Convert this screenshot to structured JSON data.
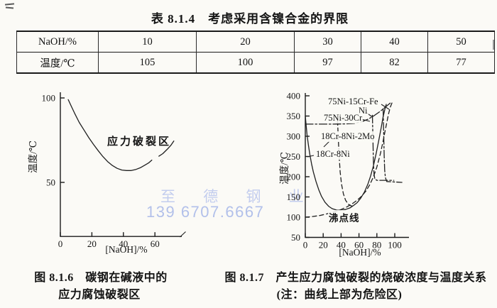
{
  "document": {
    "table_title": "表 8.1.4　考虑采用含镍合金的界限",
    "watermark_line1": "至 德 钢 业",
    "watermark_line2": "139 6707.6667"
  },
  "table": {
    "rows": [
      {
        "header": "NaOH/%",
        "values": [
          "10",
          "20",
          "30",
          "40",
          "50"
        ]
      },
      {
        "header": "温度/℃",
        "values": [
          "105",
          "100",
          "97",
          "82",
          "77"
        ]
      }
    ]
  },
  "fig6": {
    "zone_label": "应力破裂区",
    "ylabel": "温度/℃",
    "xlabel": "[NaOH]/%",
    "caption1": "图 8.1.6　碳钢在碱液中的",
    "caption2": "应力腐蚀破裂区"
  },
  "fig7": {
    "labels": {
      "ni15crfe": "75Ni-15Cr-Fe",
      "ni": "Ni",
      "ni30cr": "75Ni-30Cr",
      "cr8ni2mo": "18Cr-8Ni-2Mo",
      "cr8ni": "18Cr-8Ni",
      "boiling": "沸点线"
    },
    "ylabel": "温度/℃",
    "xlabel": "[NaOH]/%",
    "caption1": "图 8.1.7　产生应力腐蚀破裂的烧破浓度与温度关系",
    "caption2": "(注：曲线上部为危险区)"
  },
  "chart_data": [
    {
      "id": "fig6",
      "type": "line",
      "title": "碳钢在碱液中的应力腐蚀破裂区",
      "xlabel": "[NaOH]/%",
      "ylabel": "温度/℃",
      "xlim": [
        0,
        75
      ],
      "ylim": [
        18,
        105
      ],
      "xticks": [
        0,
        20,
        40,
        60
      ],
      "yticks": [
        50,
        100
      ],
      "grid": false,
      "annotations": [
        "应力破裂区"
      ],
      "series": [
        {
          "name": "应力破裂区边界",
          "style": "solid",
          "points": [
            [
              5,
              99
            ],
            [
              7,
              95
            ],
            [
              9,
              91
            ],
            [
              12,
              85.5
            ],
            [
              15,
              81
            ],
            [
              18,
              76.5
            ],
            [
              21,
              72.5
            ],
            [
              24,
              68.8
            ],
            [
              27,
              65.3
            ],
            [
              30,
              62.3
            ],
            [
              33,
              60
            ],
            [
              36,
              58.3
            ],
            [
              39,
              57.3
            ],
            [
              42,
              57
            ],
            [
              45,
              57
            ],
            [
              48,
              57.7
            ],
            [
              51,
              58.8
            ],
            [
              54,
              60.4
            ],
            [
              56,
              61.5
            ],
            [
              58,
              63.2
            ]
          ]
        },
        {
          "name": "边界延伸段",
          "style": "solid",
          "points": [
            [
              62.5,
              65.5
            ],
            [
              65,
              67
            ],
            [
              68,
              69.8
            ],
            [
              70,
              71.8
            ],
            [
              72,
              74.5
            ]
          ]
        }
      ]
    },
    {
      "id": "fig7",
      "type": "line",
      "title": "产生应力腐蚀破裂的烧破浓度与温度关系（曲线上部为危险区）",
      "xlabel": "[NaOH]/%",
      "ylabel": "温度/℃",
      "xlim": [
        0,
        112
      ],
      "ylim": [
        50,
        400
      ],
      "xticks": [
        0,
        20,
        40,
        60,
        80,
        100
      ],
      "yticks": [
        50,
        100,
        150,
        200,
        250,
        300,
        350,
        400
      ],
      "grid": false,
      "series": [
        {
          "name": "18Cr-8Ni",
          "style": "solid",
          "points": [
            [
              0,
              350
            ],
            [
              1,
              325
            ],
            [
              2,
              303
            ],
            [
              3.5,
              278
            ],
            [
              5,
              256
            ],
            [
              7,
              232
            ],
            [
              9,
              212
            ],
            [
              12,
              188
            ],
            [
              15,
              168
            ],
            [
              18,
              152
            ],
            [
              22,
              137
            ],
            [
              26,
              127
            ],
            [
              30,
              121
            ],
            [
              35,
              117.5
            ],
            [
              40,
              117
            ],
            [
              45,
              119
            ],
            [
              50,
              123
            ],
            [
              54,
              129
            ],
            [
              58,
              136
            ],
            [
              62,
              147
            ],
            [
              66,
              162
            ],
            [
              70,
              182
            ],
            [
              73,
              202
            ],
            [
              76,
              226
            ],
            [
              79,
              255
            ],
            [
              82,
              288
            ],
            [
              85,
              323
            ],
            [
              87,
              348
            ],
            [
              89,
              367
            ],
            [
              90.5,
              379
            ]
          ]
        },
        {
          "name": "18Cr-8Ni-2Mo",
          "style": "dashed",
          "points": [
            [
              36,
              338
            ],
            [
              36.6,
              310
            ],
            [
              37.2,
              278
            ],
            [
              38,
              244
            ],
            [
              39,
              212
            ],
            [
              40.5,
              182
            ],
            [
              42.5,
              158
            ],
            [
              45,
              142
            ],
            [
              48,
              132
            ],
            [
              51,
              128
            ],
            [
              54,
              127
            ]
          ]
        },
        {
          "name": "75Ni-30Cr",
          "style": "dashdot",
          "points": [
            [
              0,
              330
            ],
            [
              30,
              330
            ],
            [
              45,
              330.5
            ],
            [
              55,
              332
            ],
            [
              63,
              336
            ],
            [
              70,
              342
            ],
            [
              77,
              351
            ],
            [
              84,
              362
            ],
            [
              90,
              373
            ],
            [
              96,
              384
            ]
          ]
        },
        {
          "name": "Ni",
          "style": "dashdot",
          "points": [
            [
              75,
              352
            ],
            [
              75.4,
              315
            ],
            [
              75.8,
              272
            ],
            [
              76.2,
              235
            ],
            [
              76.8,
              206
            ],
            [
              77.8,
              194
            ],
            [
              80,
              191
            ],
            [
              99,
              191
            ]
          ]
        },
        {
          "name": "75Ni-15Cr-Fe",
          "style": "dashdot",
          "points": [
            [
              87,
              368
            ],
            [
              87.4,
              330
            ],
            [
              87.8,
              292
            ],
            [
              88.2,
              252
            ],
            [
              88.7,
              216
            ],
            [
              89.5,
              198
            ],
            [
              91,
              188
            ],
            [
              108,
              186
            ]
          ]
        },
        {
          "name": "沸点线",
          "style": "dashed",
          "points": [
            [
              0,
              100
            ],
            [
              8,
              101.5
            ],
            [
              16,
              104
            ],
            [
              24,
              108
            ],
            [
              32,
              113
            ],
            [
              40,
              119
            ],
            [
              47,
              126
            ],
            [
              53,
              134
            ],
            [
              58,
              142
            ],
            [
              63,
              152
            ],
            [
              68,
              165
            ],
            [
              72,
              180
            ],
            [
              76,
              199
            ],
            [
              80,
              224
            ],
            [
              84,
              257
            ],
            [
              87,
              288
            ],
            [
              90,
              322
            ],
            [
              93,
              355
            ],
            [
              95,
              372
            ],
            [
              97,
              383
            ]
          ]
        }
      ]
    }
  ]
}
